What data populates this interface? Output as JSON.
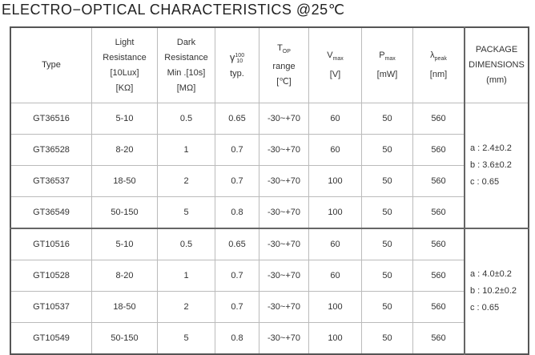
{
  "title": "ELECTRO−OPTICAL CHARACTERISTICS @25℃",
  "headers": {
    "type": "Type",
    "light": [
      "Light",
      "Resistance",
      "[10Lux]",
      "[KΩ]"
    ],
    "dark": [
      "Dark",
      "Resistance",
      "Min .[10s]",
      "[MΩ]"
    ],
    "gamma": {
      "symbol": "γ",
      "sup": "100",
      "sub": "10",
      "unit": "typ."
    },
    "top": {
      "symbol": "T",
      "sub": "OP",
      "line2": "range",
      "unit": "[℃]"
    },
    "vmax": {
      "symbol": "V",
      "sub": "max",
      "unit": "[V]"
    },
    "pmax": {
      "symbol": "P",
      "sub": "max",
      "unit": "[mW]"
    },
    "lpeak": {
      "symbol": "λ",
      "sub": "peak",
      "unit": "[nm]"
    },
    "package": [
      "PACKAGE",
      "DIMENSIONS",
      "(mm)"
    ]
  },
  "rows": [
    [
      "GT36516",
      "5-10",
      "0.5",
      "0.65",
      "-30~+70",
      "60",
      "50",
      "560"
    ],
    [
      "GT36528",
      "8-20",
      "1",
      "0.7",
      "-30~+70",
      "60",
      "50",
      "560"
    ],
    [
      "GT36537",
      "18-50",
      "2",
      "0.7",
      "-30~+70",
      "100",
      "50",
      "560"
    ],
    [
      "GT36549",
      "50-150",
      "5",
      "0.8",
      "-30~+70",
      "100",
      "50",
      "560"
    ],
    [
      "GT10516",
      "5-10",
      "0.5",
      "0.65",
      "-30~+70",
      "60",
      "50",
      "560"
    ],
    [
      "GT10528",
      "8-20",
      "1",
      "0.7",
      "-30~+70",
      "60",
      "50",
      "560"
    ],
    [
      "GT10537",
      "18-50",
      "2",
      "0.7",
      "-30~+70",
      "100",
      "50",
      "560"
    ],
    [
      "GT10549",
      "50-150",
      "5",
      "0.8",
      "-30~+70",
      "100",
      "50",
      "560"
    ]
  ],
  "package_groups": [
    [
      "a : 2.4±0.2",
      "b : 3.6±0.2",
      "c : 0.65"
    ],
    [
      "a : 4.0±0.2",
      "b : 10.2±0.2",
      "c : 0.65"
    ]
  ]
}
